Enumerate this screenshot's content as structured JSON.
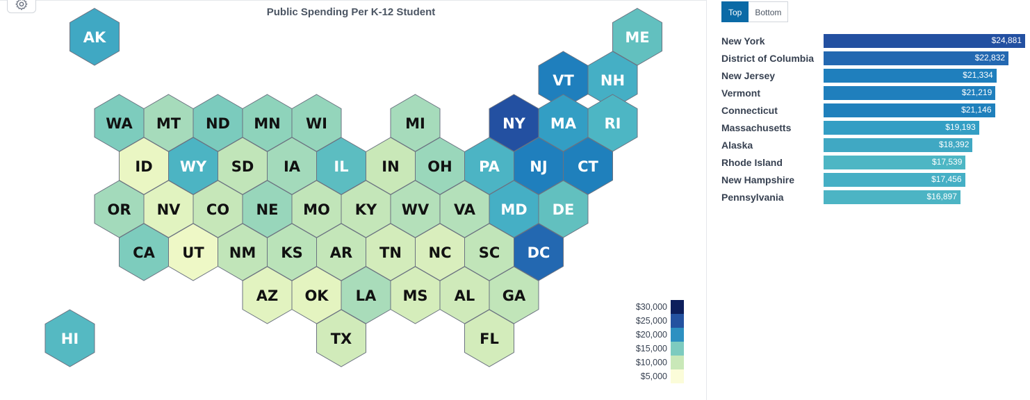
{
  "title": "Public Spending Per K-12 Student",
  "tabs": [
    {
      "label": "Top",
      "active": true
    },
    {
      "label": "Bottom",
      "active": false
    }
  ],
  "icons": {
    "settings": "gear-icon"
  },
  "colors": {
    "accent": "#0b6aa6",
    "hex_stroke": "#6b7280"
  },
  "legend": {
    "items": [
      {
        "label": "$30,000",
        "color": "#0d1f5c"
      },
      {
        "label": "$25,000",
        "color": "#2452a0"
      },
      {
        "label": "$20,000",
        "color": "#2d90c1"
      },
      {
        "label": "$15,000",
        "color": "#7dcbbf"
      },
      {
        "label": "$10,000",
        "color": "#c9e8b8"
      },
      {
        "label": "$5,000",
        "color": "#fbfcd9"
      }
    ]
  },
  "states": [
    {
      "code": "AK",
      "row": 0,
      "col": 1,
      "color": "#40a8c3",
      "text": "#ffffff"
    },
    {
      "code": "ME",
      "row": 0,
      "col": 12,
      "color": "#62c0bf",
      "text": "#ffffff"
    },
    {
      "code": "VT",
      "row": 1,
      "col": 10.5,
      "color": "#1f7fbd",
      "text": "#ffffff"
    },
    {
      "code": "NH",
      "row": 1,
      "col": 11.5,
      "color": "#45afc5",
      "text": "#ffffff"
    },
    {
      "code": "WA",
      "row": 2,
      "col": 1.5,
      "color": "#7dccbd",
      "text": "#111111"
    },
    {
      "code": "MT",
      "row": 2,
      "col": 2.5,
      "color": "#a6dbbb",
      "text": "#111111"
    },
    {
      "code": "ND",
      "row": 2,
      "col": 3.5,
      "color": "#7bcbbd",
      "text": "#111111"
    },
    {
      "code": "MN",
      "row": 2,
      "col": 4.5,
      "color": "#8ed3bb",
      "text": "#111111"
    },
    {
      "code": "WI",
      "row": 2,
      "col": 5.5,
      "color": "#94d5bb",
      "text": "#111111"
    },
    {
      "code": "MI",
      "row": 2,
      "col": 7.5,
      "color": "#a6dbbb",
      "text": "#111111"
    },
    {
      "code": "NY",
      "row": 2,
      "col": 9.5,
      "color": "#2350a1",
      "text": "#ffffff"
    },
    {
      "code": "MA",
      "row": 2,
      "col": 10.5,
      "color": "#339ec4",
      "text": "#ffffff"
    },
    {
      "code": "RI",
      "row": 2,
      "col": 11.5,
      "color": "#4db6c4",
      "text": "#ffffff"
    },
    {
      "code": "ID",
      "row": 3,
      "col": 2,
      "color": "#eaf6c3",
      "text": "#111111"
    },
    {
      "code": "WY",
      "row": 3,
      "col": 3,
      "color": "#4cb4c3",
      "text": "#ffffff"
    },
    {
      "code": "SD",
      "row": 3,
      "col": 4,
      "color": "#c1e5b9",
      "text": "#111111"
    },
    {
      "code": "IA",
      "row": 3,
      "col": 5,
      "color": "#a3dabb",
      "text": "#111111"
    },
    {
      "code": "IL",
      "row": 3,
      "col": 6,
      "color": "#5cbdc1",
      "text": "#ffffff"
    },
    {
      "code": "IN",
      "row": 3,
      "col": 7,
      "color": "#c9e8b8",
      "text": "#111111"
    },
    {
      "code": "OH",
      "row": 3,
      "col": 8,
      "color": "#9ad7bb",
      "text": "#111111"
    },
    {
      "code": "PA",
      "row": 3,
      "col": 9,
      "color": "#4cb4c4",
      "text": "#ffffff"
    },
    {
      "code": "NJ",
      "row": 3,
      "col": 10,
      "color": "#1f7fbd",
      "text": "#ffffff"
    },
    {
      "code": "CT",
      "row": 3,
      "col": 11,
      "color": "#1f80bc",
      "text": "#ffffff"
    },
    {
      "code": "OR",
      "row": 4,
      "col": 1.5,
      "color": "#a3dabb",
      "text": "#111111"
    },
    {
      "code": "NV",
      "row": 4,
      "col": 2.5,
      "color": "#e1f3c0",
      "text": "#111111"
    },
    {
      "code": "CO",
      "row": 4,
      "col": 3.5,
      "color": "#c6e7b9",
      "text": "#111111"
    },
    {
      "code": "NE",
      "row": 4,
      "col": 4.5,
      "color": "#98d6bb",
      "text": "#111111"
    },
    {
      "code": "MO",
      "row": 4,
      "col": 5.5,
      "color": "#c1e5b9",
      "text": "#111111"
    },
    {
      "code": "KY",
      "row": 4,
      "col": 6.5,
      "color": "#c4e6b9",
      "text": "#111111"
    },
    {
      "code": "WV",
      "row": 4,
      "col": 7.5,
      "color": "#b4e0ba",
      "text": "#111111"
    },
    {
      "code": "VA",
      "row": 4,
      "col": 8.5,
      "color": "#b4e0ba",
      "text": "#111111"
    },
    {
      "code": "MD",
      "row": 4,
      "col": 9.5,
      "color": "#45afc5",
      "text": "#ffffff"
    },
    {
      "code": "DE",
      "row": 4,
      "col": 10.5,
      "color": "#62c0bf",
      "text": "#ffffff"
    },
    {
      "code": "CA",
      "row": 5,
      "col": 2,
      "color": "#7dccbd",
      "text": "#111111"
    },
    {
      "code": "UT",
      "row": 5,
      "col": 3,
      "color": "#eef8c6",
      "text": "#111111"
    },
    {
      "code": "NM",
      "row": 5,
      "col": 4,
      "color": "#c1e5b9",
      "text": "#111111"
    },
    {
      "code": "KS",
      "row": 5,
      "col": 5,
      "color": "#bae3b9",
      "text": "#111111"
    },
    {
      "code": "AR",
      "row": 5,
      "col": 6,
      "color": "#c4e6b9",
      "text": "#111111"
    },
    {
      "code": "TN",
      "row": 5,
      "col": 7,
      "color": "#d3ecbb",
      "text": "#111111"
    },
    {
      "code": "NC",
      "row": 5,
      "col": 8,
      "color": "#d9eebd",
      "text": "#111111"
    },
    {
      "code": "SC",
      "row": 5,
      "col": 9,
      "color": "#c1e5b9",
      "text": "#111111"
    },
    {
      "code": "DC",
      "row": 5,
      "col": 10,
      "color": "#2368b1",
      "text": "#ffffff"
    },
    {
      "code": "AZ",
      "row": 6,
      "col": 4.5,
      "color": "#e2f3c0",
      "text": "#111111"
    },
    {
      "code": "OK",
      "row": 6,
      "col": 5.5,
      "color": "#e4f4c0",
      "text": "#111111"
    },
    {
      "code": "LA",
      "row": 6,
      "col": 6.5,
      "color": "#a9dcba",
      "text": "#111111"
    },
    {
      "code": "MS",
      "row": 6,
      "col": 7.5,
      "color": "#d5edbb",
      "text": "#111111"
    },
    {
      "code": "AL",
      "row": 6,
      "col": 8.5,
      "color": "#cfeaba",
      "text": "#111111"
    },
    {
      "code": "GA",
      "row": 6,
      "col": 9.5,
      "color": "#c1e5b9",
      "text": "#111111"
    },
    {
      "code": "HI",
      "row": 7,
      "col": 0.5,
      "color": "#55b9c2",
      "text": "#ffffff"
    },
    {
      "code": "TX",
      "row": 7,
      "col": 6,
      "color": "#d1ebba",
      "text": "#111111"
    },
    {
      "code": "FL",
      "row": 7,
      "col": 9,
      "color": "#d3ecbb",
      "text": "#111111"
    }
  ],
  "ranking": {
    "max_value": 24881,
    "items": [
      {
        "name": "New York",
        "value": 24881,
        "label": "$24,881",
        "color": "#2350a1"
      },
      {
        "name": "District of Columbia",
        "value": 22832,
        "label": "$22,832",
        "color": "#2368b1"
      },
      {
        "name": "New Jersey",
        "value": 21334,
        "label": "$21,334",
        "color": "#1f7fbd"
      },
      {
        "name": "Vermont",
        "value": 21219,
        "label": "$21,219",
        "color": "#1f7fbd"
      },
      {
        "name": "Connecticut",
        "value": 21146,
        "label": "$21,146",
        "color": "#1f80bc"
      },
      {
        "name": "Massachusetts",
        "value": 19193,
        "label": "$19,193",
        "color": "#339ec4"
      },
      {
        "name": "Alaska",
        "value": 18392,
        "label": "$18,392",
        "color": "#40a8c3"
      },
      {
        "name": "Rhode Island",
        "value": 17539,
        "label": "$17,539",
        "color": "#4db6c4"
      },
      {
        "name": "New Hampshire",
        "value": 17456,
        "label": "$17,456",
        "color": "#45afc5"
      },
      {
        "name": "Pennsylvania",
        "value": 16897,
        "label": "$16,897",
        "color": "#4cb4c4"
      }
    ]
  }
}
